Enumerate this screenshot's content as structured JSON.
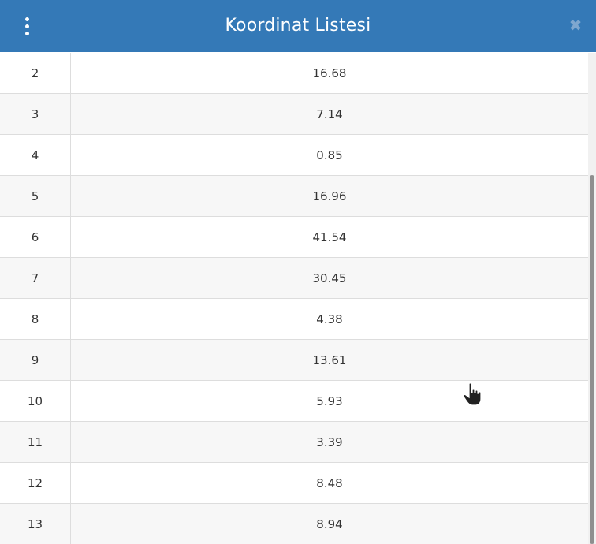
{
  "dialog": {
    "title": "Koordinat Listesi",
    "header_color": "#3479b7",
    "menu_icon": "vertical-ellipsis-icon",
    "close_icon": "close-icon",
    "close_glyph": "✖"
  },
  "table": {
    "rows": [
      {
        "no": "2",
        "value": "16.68"
      },
      {
        "no": "3",
        "value": "7.14"
      },
      {
        "no": "4",
        "value": "0.85"
      },
      {
        "no": "5",
        "value": "16.96"
      },
      {
        "no": "6",
        "value": "41.54"
      },
      {
        "no": "7",
        "value": "30.45"
      },
      {
        "no": "8",
        "value": "4.38"
      },
      {
        "no": "9",
        "value": "13.61"
      },
      {
        "no": "10",
        "value": "5.93"
      },
      {
        "no": "11",
        "value": "3.39"
      },
      {
        "no": "12",
        "value": "8.48"
      },
      {
        "no": "13",
        "value": "8.94"
      }
    ]
  },
  "cursor": {
    "icon": "hand-pointer-icon"
  }
}
